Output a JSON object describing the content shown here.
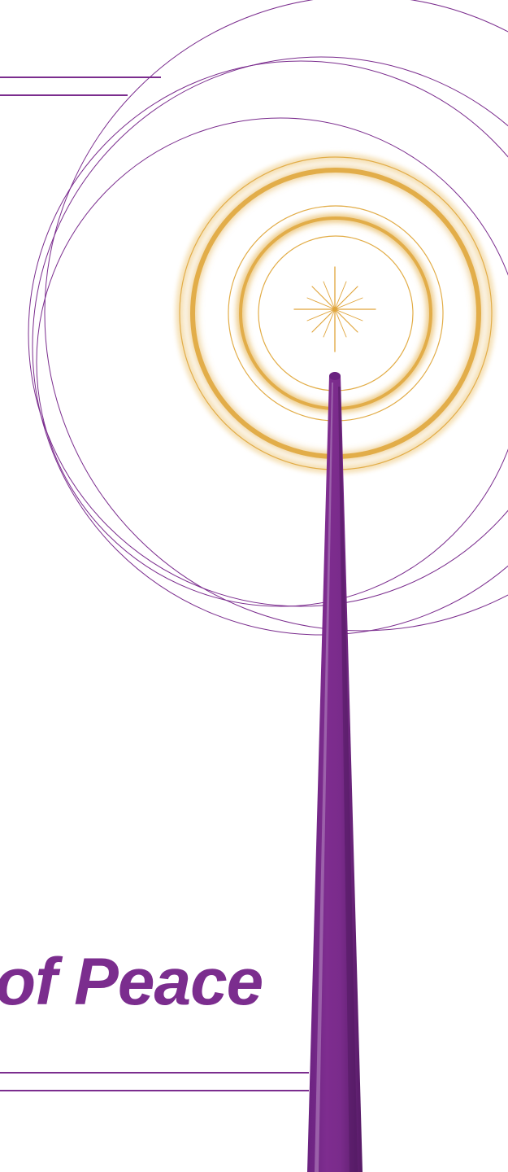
{
  "heading": {
    "text": "of Peace"
  },
  "colors": {
    "purple": "#7b2d8e",
    "purple_dark": "#5c1f6e",
    "gold": "#e2ad48",
    "gold_light": "#f0cf8a",
    "background": "#ffffff"
  },
  "icons": {
    "candle": "candle-icon",
    "star": "sparkle-star-icon"
  }
}
